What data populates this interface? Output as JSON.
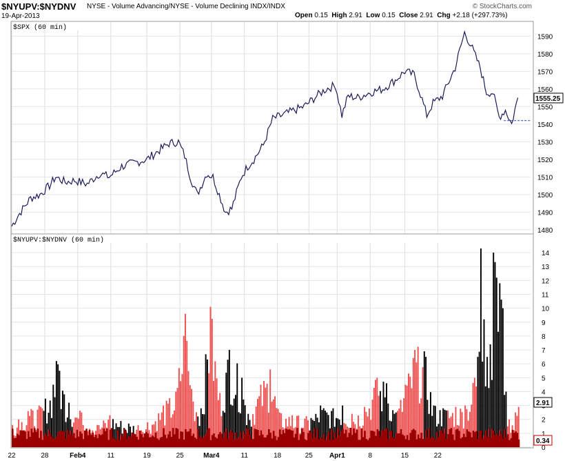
{
  "header": {
    "symbol": "$NYUPV:$NYDNV",
    "description": "NYSE - Volume Advancing/NYSE - Volume Declining",
    "exchange": "INDX/INDX",
    "date": "19-Apr-2013",
    "open_label": "Open",
    "open": "0.15",
    "high_label": "High",
    "high": "2.91",
    "low_label": "Low",
    "low": "0.15",
    "close_label": "Close",
    "close": "2.91",
    "chg_label": "Chg",
    "chg": "+2.18 (+297.73%)",
    "brand": "© StockCharts.com"
  },
  "chart_data": [
    {
      "type": "line",
      "panel_label": "$SPX (60 min)",
      "ylim": [
        1478,
        1598
      ],
      "yticks": [
        1480,
        1490,
        1500,
        1510,
        1520,
        1530,
        1540,
        1550,
        1560,
        1570,
        1580,
        1590
      ],
      "last_value": "1555.25",
      "line_color": "#1a1a5a",
      "x_dates": [
        "Jan 22",
        "Jan 28",
        "Feb 4",
        "Feb 11",
        "Feb 19",
        "Feb 25",
        "Mar 4",
        "Mar 11",
        "Mar 18",
        "Mar 25",
        "Apr 1",
        "Apr 8",
        "Apr 15",
        "Apr 22"
      ],
      "anchors": [
        [
          0,
          1482
        ],
        [
          4,
          1488
        ],
        [
          12,
          1498
        ],
        [
          18,
          1500
        ],
        [
          24,
          1505
        ],
        [
          28,
          1510
        ],
        [
          34,
          1507
        ],
        [
          40,
          1508
        ],
        [
          48,
          1506
        ],
        [
          56,
          1512
        ],
        [
          62,
          1510
        ],
        [
          70,
          1516
        ],
        [
          78,
          1518
        ],
        [
          86,
          1520
        ],
        [
          92,
          1524
        ],
        [
          100,
          1529
        ],
        [
          106,
          1530
        ],
        [
          110,
          1522
        ],
        [
          114,
          1509
        ],
        [
          118,
          1500
        ],
        [
          124,
          1512
        ],
        [
          128,
          1510
        ],
        [
          132,
          1500
        ],
        [
          136,
          1490
        ],
        [
          140,
          1492
        ],
        [
          146,
          1510
        ],
        [
          150,
          1516
        ],
        [
          154,
          1520
        ],
        [
          160,
          1528
        ],
        [
          166,
          1543
        ],
        [
          172,
          1545
        ],
        [
          180,
          1548
        ],
        [
          186,
          1550
        ],
        [
          194,
          1556
        ],
        [
          200,
          1560
        ],
        [
          206,
          1562
        ],
        [
          210,
          1545
        ],
        [
          214,
          1556
        ],
        [
          220,
          1555
        ],
        [
          228,
          1558
        ],
        [
          236,
          1560
        ],
        [
          244,
          1565
        ],
        [
          250,
          1570
        ],
        [
          256,
          1568
        ],
        [
          260,
          1557
        ],
        [
          264,
          1545
        ],
        [
          268,
          1552
        ],
        [
          274,
          1556
        ],
        [
          282,
          1572
        ],
        [
          288,
          1592
        ],
        [
          292,
          1585
        ],
        [
          298,
          1572
        ],
        [
          302,
          1558
        ],
        [
          306,
          1558
        ],
        [
          310,
          1544
        ],
        [
          314,
          1548
        ],
        [
          318,
          1540
        ],
        [
          320,
          1548
        ],
        [
          322,
          1555
        ]
      ]
    },
    {
      "type": "bar",
      "panel_label": "$NYUPV:$NYDNV (60 min)",
      "ylim": [
        0,
        14.7
      ],
      "yticks": [
        0,
        1,
        2,
        3,
        4,
        5,
        6,
        7,
        8,
        9,
        10,
        11,
        12,
        13,
        14
      ],
      "last_value": "2.91",
      "secondary_value": "0.34",
      "up_color": "#000000",
      "down_color": "#f05050",
      "base_color": "#990000",
      "spikes": [
        [
          0,
          1.6
        ],
        [
          4,
          2.0
        ],
        [
          10,
          2.6
        ],
        [
          18,
          2.9
        ],
        [
          26,
          4.5
        ],
        [
          28,
          6.2
        ],
        [
          30,
          5.5
        ],
        [
          36,
          3.2
        ],
        [
          44,
          2.5
        ],
        [
          54,
          1.6
        ],
        [
          62,
          2.3
        ],
        [
          74,
          1.7
        ],
        [
          86,
          1.8
        ],
        [
          96,
          3.0
        ],
        [
          104,
          4.0
        ],
        [
          110,
          9.6
        ],
        [
          114,
          4.2
        ],
        [
          120,
          2.8
        ],
        [
          126,
          10.1
        ],
        [
          132,
          3.9
        ],
        [
          138,
          7.0
        ],
        [
          146,
          5.0
        ],
        [
          150,
          2.4
        ],
        [
          158,
          4.5
        ],
        [
          164,
          5.6
        ],
        [
          170,
          2.5
        ],
        [
          178,
          2.3
        ],
        [
          190,
          2.1
        ],
        [
          196,
          3.0
        ],
        [
          204,
          2.8
        ],
        [
          210,
          3.0
        ],
        [
          216,
          2.4
        ],
        [
          224,
          2.9
        ],
        [
          232,
          5.0
        ],
        [
          238,
          4.6
        ],
        [
          244,
          2.5
        ],
        [
          250,
          4.5
        ],
        [
          256,
          7.0
        ],
        [
          262,
          6.9
        ],
        [
          268,
          3.0
        ],
        [
          274,
          2.8
        ],
        [
          282,
          2.9
        ],
        [
          288,
          3.0
        ],
        [
          294,
          5.0
        ],
        [
          296,
          6.5
        ],
        [
          298,
          14.3
        ],
        [
          300,
          9.2
        ],
        [
          302,
          6.5
        ],
        [
          304,
          7.4
        ],
        [
          306,
          14.0
        ],
        [
          308,
          12.2
        ],
        [
          310,
          11.8
        ],
        [
          312,
          10.0
        ],
        [
          314,
          4.0
        ],
        [
          316,
          2.0
        ],
        [
          320,
          2.5
        ],
        [
          322,
          2.9
        ]
      ],
      "black_segments": [
        [
          20,
          38
        ],
        [
          64,
          78
        ],
        [
          118,
          124
        ],
        [
          134,
          152
        ],
        [
          190,
          210
        ],
        [
          234,
          244
        ],
        [
          262,
          276
        ],
        [
          296,
          314
        ]
      ]
    }
  ]
}
